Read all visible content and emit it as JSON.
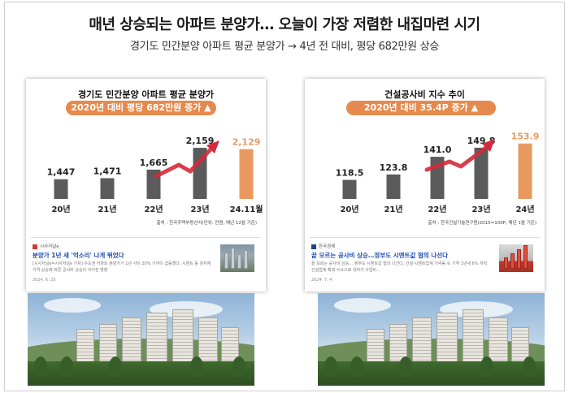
{
  "headline": "매년 상승되는 아파트 분양가… 오늘이 가장 저렴한 내집마련 시기",
  "subline": "경기도 민간분양 아파트 평균 분양가 → 4년 전 대비, 평당 682만원 상승",
  "colors": {
    "bar_gray": "#5b5b5b",
    "bar_orange": "#e9995f",
    "pill": "#e58a4e",
    "arrow_red": "#d42a3a",
    "news_link": "#1f4cb0"
  },
  "panels": [
    {
      "title": "경기도 민간분양 아파트 평균 분양가",
      "pill": "2020년 대비 평당 682만원 증가 ▲",
      "source": "출처 : 한국주택부동산사(단위: 만원, 매년 12월 기준)",
      "news": {
        "outlet": "시사저널e",
        "headline": "분양가 1년 새 '억소리' 나게 뛰었다",
        "body": "[시사저널e=시사저널e 기자] 수도권 아파트 분양가가 1년 사이 20% 가까이 급등했다. 시멘트 등 원자재 가격 상승에 따른 공사비 상승이 이어진 영향",
        "date": "2024. 6. 25"
      }
    },
    {
      "title": "건설공사비 지수 추이",
      "pill": "2020년 대비 35.4P 증가 ▲",
      "source": "출처 : 한국건설기술연구원(2015=100P, 매년 1월 기준)",
      "news": {
        "outlet": "한국경제",
        "headline": "끝 모르는 공사비 상승…정부도 시멘트값 협의 나선다",
        "body": "끝 모르는 공사비 상승… 정부도 시멘트값 협의 나선다, 건설·시멘트업계 기싸움 속 가격 1년새 6% 하락 건설업계 확대 수요으로 내려가 사업비…",
        "date": "2024. 7. 4"
      }
    }
  ],
  "chart_data": [
    {
      "type": "bar",
      "title": "경기도 민간분양 아파트 평균 분양가",
      "categories": [
        "20년",
        "21년",
        "22년",
        "23년",
        "24.11월"
      ],
      "values": [
        1447,
        1471,
        1665,
        2159,
        2129
      ],
      "value_labels": [
        "1,447",
        "1,471",
        "1,665",
        "2,159",
        "2,129"
      ],
      "highlight_index": 4,
      "ylim": [
        1000,
        2400
      ],
      "unit": "만원",
      "annotation": "rising trend arrow"
    },
    {
      "type": "bar",
      "title": "건설공사비 지수 추이",
      "categories": [
        "20년",
        "21년",
        "22년",
        "23년",
        "24년"
      ],
      "values": [
        118.5,
        123.8,
        141.0,
        149.8,
        153.9
      ],
      "value_labels": [
        "118.5",
        "123.8",
        "141.0",
        "149.8",
        "153.9"
      ],
      "highlight_index": 4,
      "ylim": [
        100,
        160
      ],
      "unit": "P",
      "annotation": "rising trend arrow"
    }
  ]
}
